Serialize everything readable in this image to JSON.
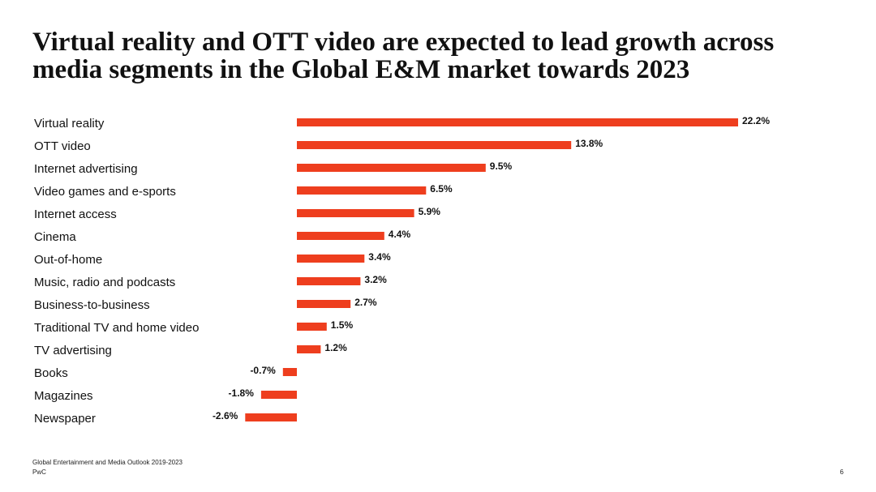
{
  "title": {
    "line1": "Virtual reality and OTT video are expected to lead growth across",
    "line2": "media segments in the Global E&M market towards 2023"
  },
  "footer": {
    "source": "Global Entertainment and Media Outlook 2019-2023",
    "brand": "PwC",
    "page_number": "6"
  },
  "chart_data": {
    "type": "bar",
    "orientation": "horizontal",
    "categories": [
      "Virtual reality",
      "OTT video",
      "Internet advertising",
      "Video games and e-sports",
      "Internet access",
      "Cinema",
      "Out-of-home",
      "Music, radio and podcasts",
      "Business-to-business",
      "Traditional TV and home video",
      "TV advertising",
      "Books",
      "Magazines",
      "Newspaper"
    ],
    "values": [
      22.2,
      13.8,
      9.5,
      6.5,
      5.9,
      4.4,
      3.4,
      3.2,
      2.7,
      1.5,
      1.2,
      -0.7,
      -1.8,
      -2.6
    ],
    "value_labels": [
      "22.2%",
      "13.8%",
      "9.5%",
      "6.5%",
      "5.9%",
      "4.4%",
      "3.4%",
      "3.2%",
      "2.7%",
      "1.5%",
      "1.2%",
      "-0.7%",
      "-1.8%",
      "-2.6%"
    ],
    "bar_color": "#ee3e1e",
    "xlim": [
      -2.6,
      22.2
    ],
    "grid": false,
    "legend": false
  }
}
